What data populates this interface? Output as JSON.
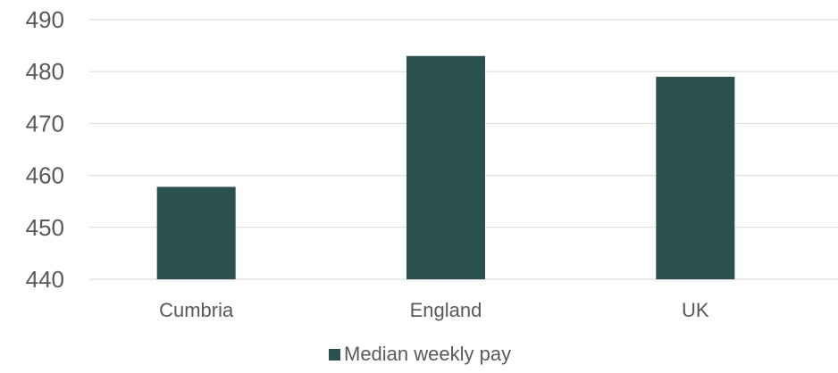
{
  "chart_data": {
    "type": "bar",
    "title": "",
    "xlabel": "",
    "ylabel": "",
    "categories": [
      "Cumbria",
      "England",
      "UK"
    ],
    "series": [
      {
        "name": "Median weekly pay",
        "values": [
          457.8,
          483,
          479
        ]
      }
    ],
    "ylim": [
      440,
      490
    ],
    "yticks": [
      440,
      450,
      460,
      470,
      480,
      490
    ],
    "grid": true,
    "legend_position": "bottom",
    "bar_color": "#2a514e"
  }
}
